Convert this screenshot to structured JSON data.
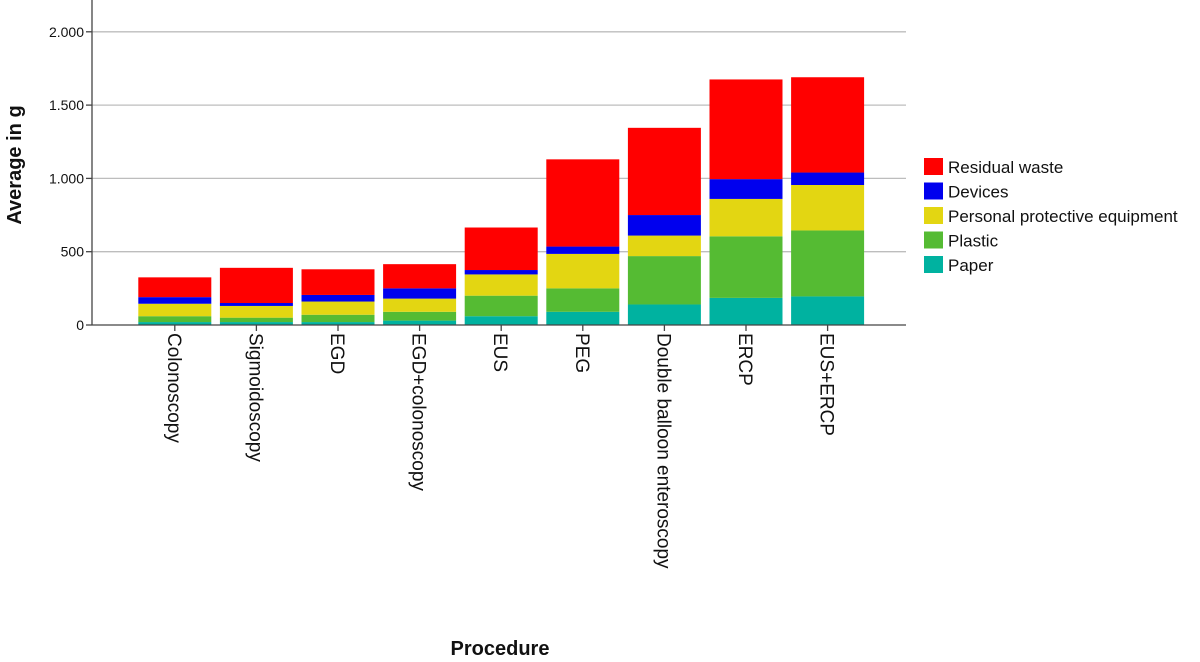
{
  "chart_data": {
    "type": "bar",
    "stacked": true,
    "title": "",
    "xlabel": "Procedure",
    "ylabel": "Average in g",
    "ylim": [
      0,
      2200
    ],
    "yticks": [
      0,
      500,
      1000,
      1500,
      2000
    ],
    "ytick_labels": [
      "0",
      "500",
      "1.000",
      "1.500",
      "2.000"
    ],
    "grid": "horizontal",
    "legend_position": "right",
    "categories": [
      "Colonoscopy",
      "Sigmoidoscopy",
      "EGD",
      "EGD+colonoscopy",
      "EUS",
      "PEG",
      "Double balloon enteroscopy",
      "ERCP",
      "EUS+ERCP"
    ],
    "series": [
      {
        "name": "Paper",
        "color": "#00b2a0",
        "values": [
          20,
          20,
          20,
          30,
          60,
          90,
          140,
          185,
          195
        ]
      },
      {
        "name": "Plastic",
        "color": "#55bb33",
        "values": [
          40,
          30,
          50,
          60,
          140,
          160,
          330,
          420,
          450
        ]
      },
      {
        "name": "Personal protective equipment",
        "color": "#e3d612",
        "values": [
          85,
          80,
          90,
          90,
          145,
          235,
          140,
          255,
          310
        ]
      },
      {
        "name": "Devices",
        "color": "#0000ee",
        "values": [
          45,
          20,
          45,
          70,
          30,
          50,
          140,
          135,
          85
        ]
      },
      {
        "name": "Residual waste",
        "color": "#ff0000",
        "values": [
          135,
          240,
          175,
          165,
          290,
          595,
          595,
          680,
          650
        ]
      }
    ],
    "legend_order": [
      "Residual waste",
      "Devices",
      "Personal protective equipment",
      "Plastic",
      "Paper"
    ]
  }
}
